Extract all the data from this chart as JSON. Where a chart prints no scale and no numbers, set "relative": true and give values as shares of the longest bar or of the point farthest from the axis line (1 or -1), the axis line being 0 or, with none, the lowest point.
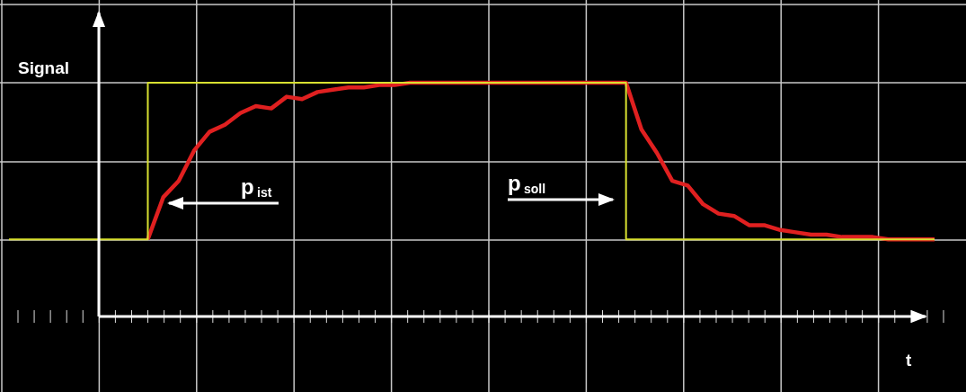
{
  "chart_data": {
    "type": "line",
    "relative": true,
    "ylabel": "Signal",
    "xlabel": "t",
    "categories": [
      null,
      null,
      null,
      null,
      null,
      null,
      null,
      null,
      null,
      null,
      null,
      null,
      null,
      null,
      null,
      null,
      null,
      null,
      null,
      null,
      null,
      null,
      null,
      null,
      null,
      null,
      null,
      null,
      null,
      null,
      null,
      null,
      null,
      null,
      null,
      null,
      null,
      null,
      null,
      null,
      null,
      null,
      null,
      null,
      null,
      null,
      null,
      null,
      null,
      null,
      null,
      null,
      null,
      null,
      null,
      null,
      null,
      null,
      null,
      null,
      null
    ],
    "series": [
      {
        "type": "step",
        "color": "#d8e030",
        "values": [
          0.33,
          0.33,
          0.33,
          0.33,
          0.33,
          0.33,
          0.33,
          0.33,
          0.33,
          1,
          1,
          1,
          1,
          1,
          1,
          1,
          1,
          1,
          1,
          1,
          1,
          1,
          1,
          1,
          1,
          1,
          1,
          1,
          1,
          1,
          1,
          1,
          1,
          1,
          1,
          1,
          1,
          1,
          1,
          1,
          0.33,
          0.33,
          0.33,
          0.33,
          0.33,
          0.33,
          0.33,
          0.33,
          0.33,
          0.33,
          0.33,
          0.33,
          0.33,
          0.33,
          0.33,
          0.33,
          0.33,
          0.33,
          0.33,
          0.33,
          0.33
        ]
      },
      {
        "type": "line",
        "color": "#e02020",
        "values": [
          null,
          null,
          null,
          null,
          null,
          null,
          null,
          null,
          null,
          0.33,
          0.51,
          0.58,
          0.71,
          0.79,
          0.82,
          0.87,
          0.9,
          0.89,
          0.94,
          0.93,
          0.96,
          0.97,
          0.98,
          0.98,
          0.99,
          0.99,
          1,
          1,
          1,
          1,
          1,
          1,
          1,
          1,
          1,
          1,
          1,
          1,
          1,
          1,
          1,
          0.8,
          0.7,
          0.58,
          0.56,
          0.48,
          0.44,
          0.43,
          0.39,
          0.39,
          0.37,
          0.36,
          0.35,
          0.35,
          0.34,
          0.34,
          0.34,
          0.33,
          0.33,
          0.33,
          0.33
        ]
      }
    ],
    "annotations": [
      "p$_{ist}$",
      "p$_{soll}$"
    ],
    "grid": true,
    "line_style": "solid",
    "marker": "none"
  }
}
